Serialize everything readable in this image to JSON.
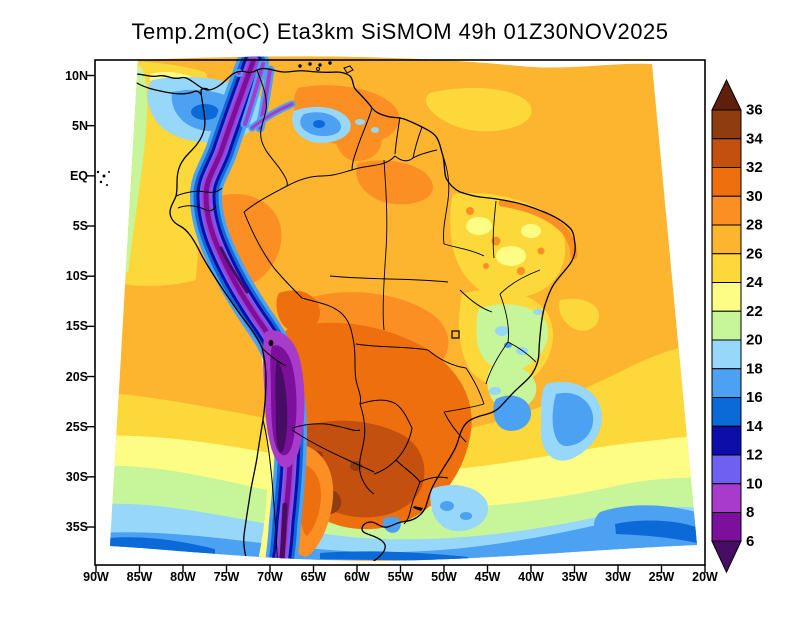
{
  "title": "Temp.2m(oC) Eta3km SiSMOM 49h 01Z30NOV2025",
  "y_axis": {
    "labels": [
      "10N",
      "5N",
      "EQ",
      "5S",
      "10S",
      "15S",
      "20S",
      "25S",
      "30S",
      "35S"
    ]
  },
  "x_axis": {
    "labels": [
      "90W",
      "85W",
      "80W",
      "75W",
      "70W",
      "65W",
      "60W",
      "55W",
      "50W",
      "45W",
      "40W",
      "35W",
      "30W",
      "25W",
      "20W"
    ]
  },
  "colorbar": {
    "tick_labels": [
      "36",
      "34",
      "32",
      "30",
      "28",
      "26",
      "24",
      "22",
      "20",
      "18",
      "16",
      "14",
      "12",
      "10",
      "8",
      "6"
    ],
    "bands": [
      {
        "level": "gt36",
        "color": "#5e1f0c"
      },
      {
        "level": "34-36",
        "color": "#8f3c10"
      },
      {
        "level": "32-34",
        "color": "#c3500f"
      },
      {
        "level": "30-32",
        "color": "#ee6f0e"
      },
      {
        "level": "28-30",
        "color": "#fb8f24"
      },
      {
        "level": "26-28",
        "color": "#fdb42e"
      },
      {
        "level": "24-26",
        "color": "#fdd83a"
      },
      {
        "level": "22-24",
        "color": "#fdfd86"
      },
      {
        "level": "20-22",
        "color": "#c6f59a"
      },
      {
        "level": "18-20",
        "color": "#96d7fa"
      },
      {
        "level": "16-18",
        "color": "#4da1f3"
      },
      {
        "level": "14-16",
        "color": "#0c69d8"
      },
      {
        "level": "12-14",
        "color": "#0d0daa"
      },
      {
        "level": "10-12",
        "color": "#6e61f2"
      },
      {
        "level": "8-10",
        "color": "#a83bcb"
      },
      {
        "level": "6-8",
        "color": "#7c0f9c"
      },
      {
        "level": "lt6",
        "color": "#470c63"
      }
    ]
  },
  "chart_data": {
    "type": "heatmap",
    "subtype": "filled_contour_weather_map",
    "title": "Temp.2m(oC) Eta3km SiSMOM 49h 01Z30NOV2025",
    "variable": "2-meter air temperature",
    "units": "oC",
    "model": "Eta3km",
    "system": "SiSMOM",
    "forecast_hour": 49,
    "valid_time": "01Z30NOV2025",
    "region": "South America",
    "lon_ticks": [
      "90W",
      "85W",
      "80W",
      "75W",
      "70W",
      "65W",
      "60W",
      "55W",
      "50W",
      "45W",
      "40W",
      "35W",
      "30W",
      "25W",
      "20W"
    ],
    "lat_ticks": [
      "10N",
      "5N",
      "EQ",
      "5S",
      "10S",
      "15S",
      "20S",
      "25S",
      "30S",
      "35S"
    ],
    "contour_levels_degC": [
      6,
      8,
      10,
      12,
      14,
      16,
      18,
      20,
      22,
      24,
      26,
      28,
      30,
      32,
      34,
      36
    ],
    "palette_high_to_low": [
      "#5e1f0c",
      "#8f3c10",
      "#c3500f",
      "#ee6f0e",
      "#fb8f24",
      "#fdb42e",
      "#fdd83a",
      "#fdfd86",
      "#c6f59a",
      "#96d7fa",
      "#4da1f3",
      "#0c69d8",
      "#0d0daa",
      "#6e61f2",
      "#a83bcb",
      "#7c0f9c",
      "#470c63"
    ],
    "notable_features": [
      "Andes mountain chain: narrow cold band below 6-12 oC (purple/blue) from Colombia to 35S",
      "Gran Chaco (Paraguay/N Argentina/SE Bolivia): hottest area 30-36 oC (dark orange/brown)",
      "Amazon basin and tropical Atlantic: 26-30 oC (orange/amber)",
      "NE Brazil interior: 22-26 oC mottled yellow with warm speckles",
      "SE Brazil highlands (Minas Gerais) and S Brazil coast: cool 16-22 oC patches",
      "Caribbean patch off Colombia and Venezuelan highlands: 14-20 oC",
      "South Atlantic / SE Pacific poleward gradient: 24 oC down to 14-16 oC near 37S",
      "Uruguay / Rio de la Plata: 16-20 oC light blue patches"
    ]
  }
}
